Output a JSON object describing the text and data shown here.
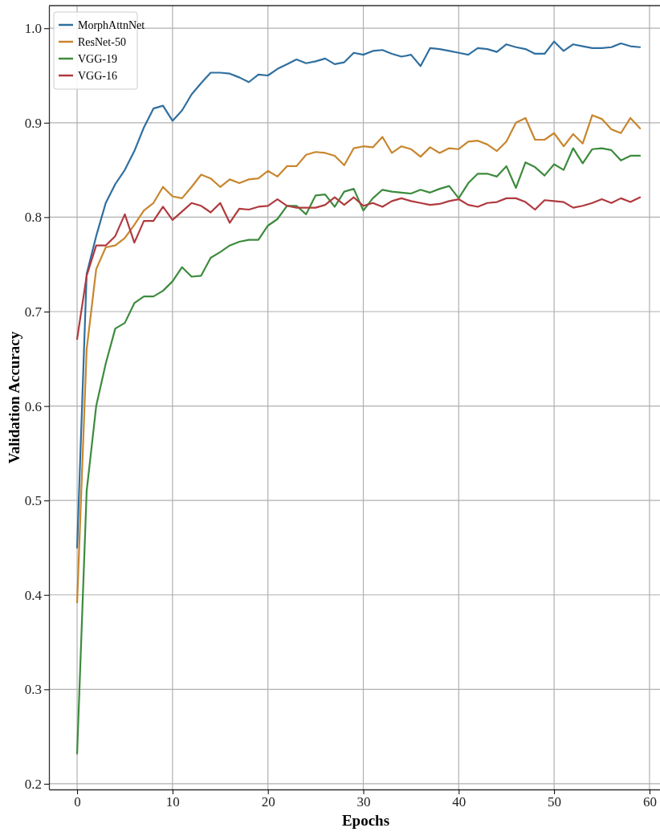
{
  "chart_data": {
    "type": "line",
    "xlabel": "Epochs",
    "ylabel": "Validation Accuracy",
    "x": [
      0,
      1,
      2,
      3,
      4,
      5,
      6,
      7,
      8,
      9,
      10,
      11,
      12,
      13,
      14,
      15,
      16,
      17,
      18,
      19,
      20,
      21,
      22,
      23,
      24,
      25,
      26,
      27,
      28,
      29,
      30,
      31,
      32,
      33,
      34,
      35,
      36,
      37,
      38,
      39,
      40,
      41,
      42,
      43,
      44,
      45,
      46,
      47,
      48,
      49,
      50,
      51,
      52,
      53,
      54,
      55,
      56,
      57,
      58,
      59
    ],
    "series": [
      {
        "name": "MorphAttnNet",
        "color": "#2f6f9f",
        "values": [
          0.45,
          0.74,
          0.78,
          0.815,
          0.835,
          0.85,
          0.87,
          0.895,
          0.915,
          0.918,
          0.902,
          0.913,
          0.93,
          0.942,
          0.953,
          0.953,
          0.952,
          0.948,
          0.943,
          0.951,
          0.95,
          0.957,
          0.962,
          0.967,
          0.963,
          0.965,
          0.968,
          0.962,
          0.964,
          0.974,
          0.972,
          0.976,
          0.977,
          0.973,
          0.97,
          0.972,
          0.96,
          0.979,
          0.978,
          0.976,
          0.974,
          0.972,
          0.979,
          0.978,
          0.975,
          0.983,
          0.98,
          0.978,
          0.973,
          0.973,
          0.986,
          0.976,
          0.983,
          0.981,
          0.979,
          0.979,
          0.98,
          0.984,
          0.981,
          0.98
        ]
      },
      {
        "name": "ResNet-50",
        "color": "#c8862e",
        "values": [
          0.392,
          0.66,
          0.745,
          0.768,
          0.77,
          0.778,
          0.792,
          0.807,
          0.815,
          0.832,
          0.822,
          0.82,
          0.832,
          0.845,
          0.841,
          0.832,
          0.84,
          0.836,
          0.84,
          0.841,
          0.849,
          0.843,
          0.854,
          0.854,
          0.866,
          0.869,
          0.868,
          0.865,
          0.855,
          0.873,
          0.875,
          0.874,
          0.885,
          0.868,
          0.875,
          0.872,
          0.864,
          0.874,
          0.868,
          0.873,
          0.872,
          0.88,
          0.881,
          0.877,
          0.87,
          0.88,
          0.9,
          0.905,
          0.882,
          0.882,
          0.889,
          0.875,
          0.888,
          0.878,
          0.908,
          0.904,
          0.893,
          0.889,
          0.905,
          0.894
        ]
      },
      {
        "name": "VGG-19",
        "color": "#3d8b3d",
        "values": [
          0.232,
          0.51,
          0.6,
          0.645,
          0.682,
          0.688,
          0.709,
          0.716,
          0.716,
          0.722,
          0.732,
          0.747,
          0.737,
          0.738,
          0.757,
          0.763,
          0.77,
          0.774,
          0.776,
          0.776,
          0.791,
          0.798,
          0.812,
          0.812,
          0.803,
          0.823,
          0.824,
          0.811,
          0.827,
          0.83,
          0.807,
          0.82,
          0.829,
          0.827,
          0.826,
          0.825,
          0.829,
          0.826,
          0.83,
          0.833,
          0.82,
          0.836,
          0.846,
          0.846,
          0.843,
          0.854,
          0.831,
          0.858,
          0.853,
          0.844,
          0.856,
          0.85,
          0.873,
          0.857,
          0.872,
          0.873,
          0.871,
          0.86,
          0.865,
          0.865
        ]
      },
      {
        "name": "VGG-16",
        "color": "#b03a3e",
        "values": [
          0.671,
          0.738,
          0.77,
          0.77,
          0.78,
          0.803,
          0.773,
          0.796,
          0.796,
          0.811,
          0.797,
          0.806,
          0.815,
          0.812,
          0.805,
          0.815,
          0.794,
          0.809,
          0.808,
          0.811,
          0.812,
          0.819,
          0.812,
          0.81,
          0.81,
          0.81,
          0.813,
          0.821,
          0.813,
          0.821,
          0.812,
          0.815,
          0.811,
          0.817,
          0.82,
          0.817,
          0.815,
          0.813,
          0.814,
          0.817,
          0.819,
          0.813,
          0.811,
          0.815,
          0.816,
          0.82,
          0.82,
          0.816,
          0.808,
          0.818,
          0.817,
          0.816,
          0.81,
          0.812,
          0.815,
          0.819,
          0.815,
          0.82,
          0.816,
          0.821
        ]
      }
    ],
    "xlim": [
      -2.95,
      61.1
    ],
    "xticks": [
      0,
      10,
      20,
      30,
      40,
      50,
      60
    ],
    "ylim": [
      0.194,
      1.024
    ],
    "yticks": [
      {
        "value": 0.2,
        "label": "0.2"
      },
      {
        "value": 0.3,
        "label": "0.3"
      },
      {
        "value": 0.4,
        "label": "0.4"
      },
      {
        "value": 0.5,
        "label": "0.5"
      },
      {
        "value": 0.6,
        "label": "0.6"
      },
      {
        "value": 0.7,
        "label": "0.7"
      },
      {
        "value": 0.8,
        "label": "0.8"
      },
      {
        "value": 0.9,
        "label": "0.9"
      },
      {
        "value": 1.0,
        "label": "1.0"
      }
    ],
    "grid": true,
    "legend": "top left",
    "marker": "none",
    "line_style": "solid"
  }
}
